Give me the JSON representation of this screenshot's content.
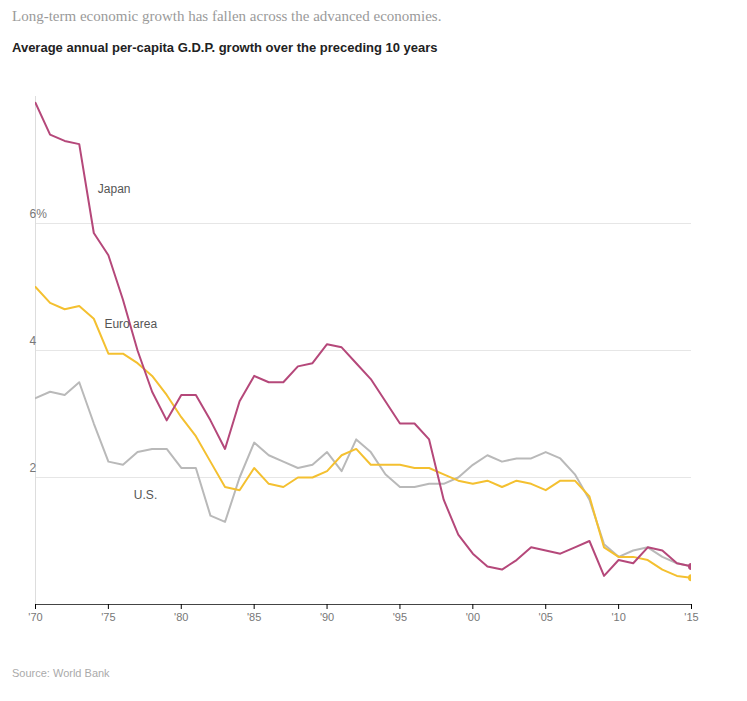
{
  "chart_data": {
    "type": "line",
    "subtitle": "Long-term economic growth has fallen across the advanced economies.",
    "title": "Average annual per-capita G.D.P. growth over the preceding 10 years",
    "caption": "Source: World Bank",
    "x": [
      1970,
      1971,
      1972,
      1973,
      1974,
      1975,
      1976,
      1977,
      1978,
      1979,
      1980,
      1981,
      1982,
      1983,
      1984,
      1985,
      1986,
      1987,
      1988,
      1989,
      1990,
      1991,
      1992,
      1993,
      1994,
      1995,
      1996,
      1997,
      1998,
      1999,
      2000,
      2001,
      2002,
      2003,
      2004,
      2005,
      2006,
      2007,
      2008,
      2009,
      2010,
      2011,
      2012,
      2013,
      2014,
      2015
    ],
    "series": [
      {
        "name": "Japan",
        "color": "#b5487a",
        "marker": "end",
        "values": [
          7.9,
          7.4,
          7.3,
          7.25,
          5.85,
          5.5,
          4.8,
          4.0,
          3.35,
          2.9,
          3.3,
          3.3,
          2.9,
          2.45,
          3.2,
          3.6,
          3.5,
          3.5,
          3.75,
          3.8,
          4.1,
          4.05,
          3.8,
          3.55,
          3.2,
          2.85,
          2.85,
          2.6,
          1.65,
          1.1,
          0.8,
          0.6,
          0.55,
          0.7,
          0.9,
          0.85,
          0.8,
          0.9,
          1.0,
          0.45,
          0.7,
          0.65,
          0.9,
          0.85,
          0.65,
          0.6
        ]
      },
      {
        "name": "Euro area",
        "color": "#f4c030",
        "marker": "end",
        "values": [
          5.0,
          4.75,
          4.65,
          4.7,
          4.5,
          3.95,
          3.95,
          3.8,
          3.6,
          3.3,
          2.95,
          2.65,
          2.25,
          1.85,
          1.8,
          2.15,
          1.9,
          1.85,
          2.0,
          2.0,
          2.1,
          2.35,
          2.45,
          2.2,
          2.2,
          2.2,
          2.15,
          2.15,
          2.05,
          1.95,
          1.9,
          1.95,
          1.85,
          1.95,
          1.9,
          1.8,
          1.95,
          1.95,
          1.7,
          0.9,
          0.75,
          0.75,
          0.7,
          0.55,
          0.45,
          0.42
        ]
      },
      {
        "name": "U.S.",
        "color": "#b9b9b9",
        "values": [
          3.25,
          3.35,
          3.3,
          3.5,
          2.85,
          2.25,
          2.2,
          2.4,
          2.45,
          2.45,
          2.15,
          2.15,
          1.4,
          1.3,
          2.0,
          2.55,
          2.35,
          2.25,
          2.15,
          2.2,
          2.4,
          2.1,
          2.6,
          2.4,
          2.05,
          1.85,
          1.85,
          1.9,
          1.9,
          2.0,
          2.2,
          2.35,
          2.25,
          2.3,
          2.3,
          2.4,
          2.3,
          2.05,
          1.65,
          0.95,
          0.75,
          0.85,
          0.9,
          0.75,
          0.65,
          0.6
        ]
      }
    ],
    "xlim": [
      1970,
      2015
    ],
    "xticks": [
      {
        "value": 1970,
        "label": "'70"
      },
      {
        "value": 1975,
        "label": "'75"
      },
      {
        "value": 1980,
        "label": "'80"
      },
      {
        "value": 1985,
        "label": "'85"
      },
      {
        "value": 1990,
        "label": "'90"
      },
      {
        "value": 1995,
        "label": "'95"
      },
      {
        "value": 2000,
        "label": "'00"
      },
      {
        "value": 2005,
        "label": "'05"
      },
      {
        "value": 2010,
        "label": "'10"
      },
      {
        "value": 2015,
        "label": "'15"
      }
    ],
    "ylim": [
      0,
      8
    ],
    "yticks": [
      2,
      4,
      {
        "value": 6,
        "label": "6%"
      }
    ],
    "grid": true
  }
}
